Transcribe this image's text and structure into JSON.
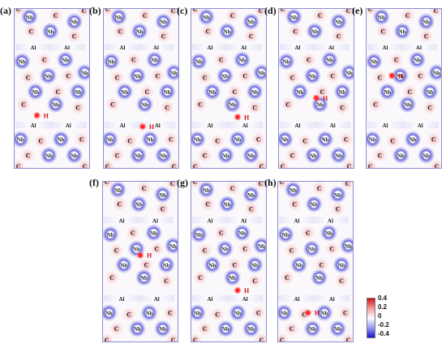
{
  "panels": [
    {
      "label": "(a)",
      "h_label": "H",
      "h_pos": [
        0.3,
        0.67
      ]
    },
    {
      "label": "(b)",
      "h_label": "H",
      "h_pos": [
        0.52,
        0.74
      ]
    },
    {
      "label": "(c)",
      "h_label": "H",
      "h_pos": [
        0.62,
        0.68
      ]
    },
    {
      "label": "(d)",
      "h_label": "H",
      "h_pos": [
        0.5,
        0.56
      ]
    },
    {
      "label": "(e)",
      "h_label": "H",
      "h_pos": [
        0.34,
        0.42
      ]
    },
    {
      "label": "(f)",
      "h_label": "H",
      "h_pos": [
        0.5,
        0.46
      ]
    },
    {
      "label": "(g)",
      "h_label": "H",
      "h_pos": [
        0.62,
        0.68
      ]
    },
    {
      "label": "(h)",
      "h_label": "H",
      "h_pos": [
        0.4,
        0.82
      ]
    }
  ],
  "atoms": {
    "nb": "Nb",
    "c": "C",
    "al": "Al"
  },
  "colorbar": {
    "ticks": [
      "0.4",
      "0.2",
      "0",
      "-0.2",
      "-0.4"
    ],
    "max_color": "#cc1414",
    "min_color": "#1414d0"
  }
}
